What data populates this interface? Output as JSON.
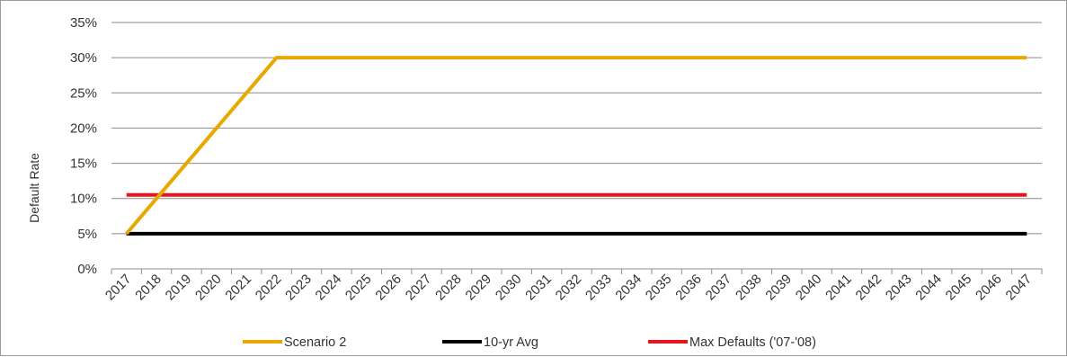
{
  "chart_data": {
    "type": "line",
    "title": "",
    "xlabel": "",
    "ylabel": "Default Rate",
    "ylim": [
      0,
      35
    ],
    "yticks": [
      0,
      5,
      10,
      15,
      20,
      25,
      30,
      35
    ],
    "ytick_suffix": "%",
    "grid": "horizontal",
    "legend": "bottom",
    "categories": [
      "2017",
      "2018",
      "2019",
      "2020",
      "2021",
      "2022",
      "2023",
      "2024",
      "2025",
      "2026",
      "2027",
      "2028",
      "2029",
      "2030",
      "2031",
      "2032",
      "2033",
      "2034",
      "2035",
      "2036",
      "2037",
      "2038",
      "2039",
      "2040",
      "2041",
      "2042",
      "2043",
      "2044",
      "2045",
      "2046",
      "2047"
    ],
    "series": [
      {
        "name": "Scenario 2",
        "color": "#E8A800",
        "values": [
          5,
          10,
          15,
          20,
          25,
          30,
          30,
          30,
          30,
          30,
          30,
          30,
          30,
          30,
          30,
          30,
          30,
          30,
          30,
          30,
          30,
          30,
          30,
          30,
          30,
          30,
          30,
          30,
          30,
          30,
          30
        ]
      },
      {
        "name": "10-yr Avg",
        "color": "#000000",
        "values": [
          5,
          5,
          5,
          5,
          5,
          5,
          5,
          5,
          5,
          5,
          5,
          5,
          5,
          5,
          5,
          5,
          5,
          5,
          5,
          5,
          5,
          5,
          5,
          5,
          5,
          5,
          5,
          5,
          5,
          5,
          5
        ]
      },
      {
        "name": "Max Defaults ('07-'08)",
        "color": "#E8141E",
        "values": [
          10.5,
          10.5,
          10.5,
          10.5,
          10.5,
          10.5,
          10.5,
          10.5,
          10.5,
          10.5,
          10.5,
          10.5,
          10.5,
          10.5,
          10.5,
          10.5,
          10.5,
          10.5,
          10.5,
          10.5,
          10.5,
          10.5,
          10.5,
          10.5,
          10.5,
          10.5,
          10.5,
          10.5,
          10.5,
          10.5,
          10.5
        ]
      }
    ]
  }
}
